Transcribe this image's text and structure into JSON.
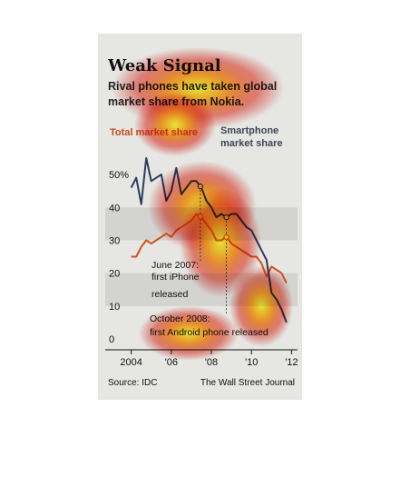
{
  "colors": {
    "total_series": "#d2521c",
    "smartphone_series": "#2b3e5e",
    "background": "#e6e6e2",
    "band": "#d3d3cf"
  },
  "chart_data": {
    "type": "line",
    "title": "Weak Signal",
    "subtitle_lines": [
      "Rival phones have taken global",
      "market share from Nokia."
    ],
    "legend": {
      "total_label": "Total market share",
      "smartphone_label_lines": [
        "Smartphone",
        "market share"
      ]
    },
    "y_tick_labels": [
      "0",
      "10",
      "20",
      "30",
      "40",
      "50%"
    ],
    "y_ticks": [
      0,
      10,
      20,
      30,
      40,
      50
    ],
    "ylim": [
      0,
      55
    ],
    "x_tick_labels": [
      "2004",
      "'06",
      "'08",
      "'10",
      "'12"
    ],
    "x_ticks": [
      2004,
      2006,
      2008,
      2010,
      2012
    ],
    "xlim": [
      2003.7,
      2012.3
    ],
    "grid": "alternating bands",
    "series": [
      {
        "name": "Total market share",
        "x": [
          2004.0,
          2004.25,
          2004.5,
          2004.75,
          2005.0,
          2005.25,
          2005.5,
          2005.75,
          2006.0,
          2006.25,
          2006.5,
          2006.75,
          2007.0,
          2007.25,
          2007.5,
          2007.75,
          2008.0,
          2008.25,
          2008.5,
          2008.75,
          2009.0,
          2009.25,
          2009.5,
          2009.75,
          2010.0,
          2010.25,
          2010.5,
          2010.75,
          2011.0,
          2011.25,
          2011.5,
          2011.75
        ],
        "values": [
          25,
          25,
          28,
          30,
          29,
          30,
          31,
          32,
          31,
          33,
          34,
          35,
          36,
          38,
          37,
          35,
          33,
          30,
          30,
          31,
          29,
          28,
          27,
          26,
          25,
          25,
          23,
          19,
          22,
          21,
          20,
          17
        ]
      },
      {
        "name": "Smartphone market share",
        "x": [
          2004.0,
          2004.25,
          2004.5,
          2004.75,
          2005.0,
          2005.25,
          2005.5,
          2005.75,
          2006.0,
          2006.25,
          2006.5,
          2006.75,
          2007.0,
          2007.25,
          2007.5,
          2007.75,
          2008.0,
          2008.25,
          2008.5,
          2008.75,
          2009.0,
          2009.25,
          2009.5,
          2009.75,
          2010.0,
          2010.25,
          2010.5,
          2010.75,
          2011.0,
          2011.25,
          2011.5,
          2011.75
        ],
        "values": [
          46,
          49,
          41,
          55,
          48,
          49,
          50,
          42,
          45,
          52,
          44,
          46,
          48,
          48,
          46,
          42,
          40,
          37,
          38,
          37,
          38,
          38,
          36,
          34,
          33,
          30,
          27,
          24,
          14,
          12,
          9,
          5
        ]
      }
    ],
    "annotations": [
      {
        "lines": [
          "June 2007:",
          "first iPhone",
          "released"
        ],
        "x": 2007.45
      },
      {
        "lines": [
          "October 2008:",
          "first Android phone released"
        ],
        "x": 2008.75
      }
    ],
    "source": "Source: IDC",
    "credit": "The Wall Street Journal"
  }
}
